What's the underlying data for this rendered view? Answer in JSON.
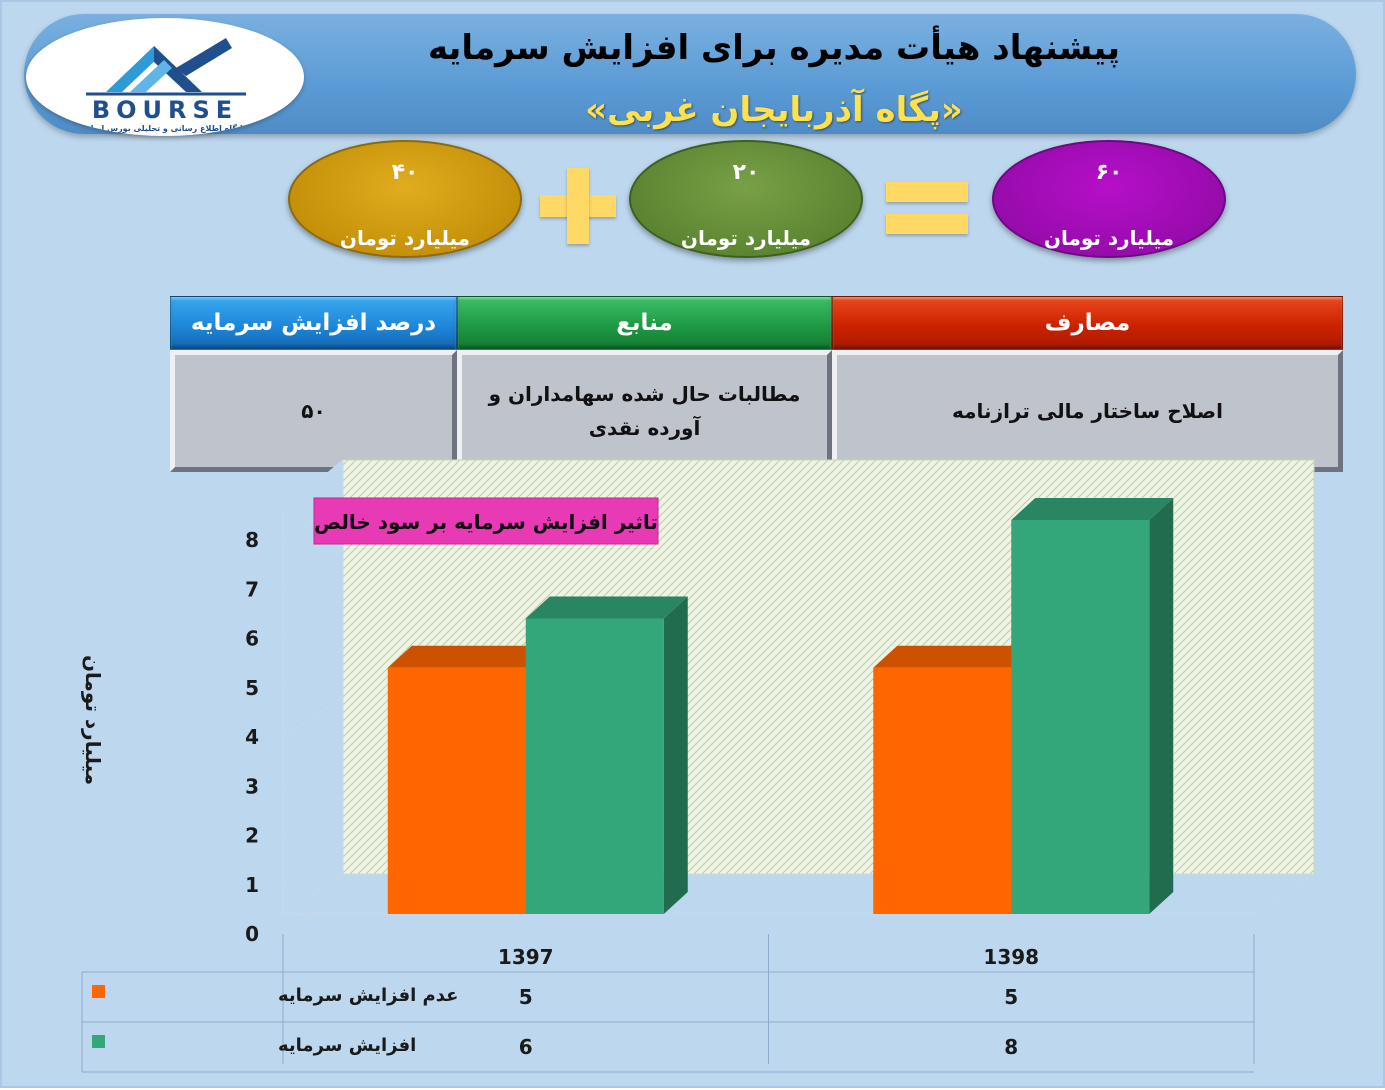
{
  "header": {
    "title": "پیشنهاد هیأت مدیره برای افزایش سرمایه",
    "subtitle": "«پگاه آذربایجان غربی»"
  },
  "logo": {
    "word": "BOURSE",
    "tagline": "پایگاه اطلاع رسانی و تحلیلی بورس ایران",
    "colors": {
      "primary": "#1f4f8c",
      "accent": "#2e9bd6"
    }
  },
  "equation": {
    "left": {
      "value": "۴۰",
      "unit": "میلیارد تومان"
    },
    "middle": {
      "value": "۲۰",
      "unit": "میلیارد تومان"
    },
    "result": {
      "value": "۶۰",
      "unit": "میلیارد تومان"
    },
    "operators": [
      "plus-icon",
      "equals-icon"
    ]
  },
  "info_table": {
    "headers": {
      "percent": "درصد افزایش سرمایه",
      "sources": "منابع",
      "uses": "مصارف"
    },
    "values": {
      "percent": "۵۰",
      "sources": "مطالبات حال شده سهامداران و آورده نقدی",
      "uses": "اصلاح ساختار مالی ترازنامه"
    },
    "colors": {
      "percent": "#1e88d9",
      "sources": "#1f9a44",
      "uses": "#cc2200"
    }
  },
  "chart_data": {
    "type": "bar",
    "title": "تاثیر افزایش سرمایه بر سود خالص",
    "ylabel": "میلیارد تومان",
    "xlabel": "",
    "categories": [
      "1397",
      "1398"
    ],
    "ylim": [
      0,
      8
    ],
    "yticks": [
      0,
      1,
      2,
      3,
      4,
      5,
      6,
      7,
      8
    ],
    "grid": false,
    "legend": "data-table-below",
    "series": [
      {
        "name": "عدم افزایش سرمایه",
        "values": [
          5,
          5
        ],
        "color": "#ff6600"
      },
      {
        "name": "افزایش سرمایه",
        "values": [
          6,
          8
        ],
        "color": "#33a67a"
      }
    ]
  }
}
